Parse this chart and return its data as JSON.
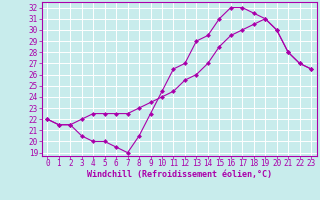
{
  "title": "",
  "xlabel": "Windchill (Refroidissement éolien,°C)",
  "bg_color": "#c8ecec",
  "line_color": "#aa00aa",
  "grid_color": "#ffffff",
  "xlim": [
    -0.5,
    23.5
  ],
  "ylim": [
    18.7,
    32.5
  ],
  "xticks": [
    0,
    1,
    2,
    3,
    4,
    5,
    6,
    7,
    8,
    9,
    10,
    11,
    12,
    13,
    14,
    15,
    16,
    17,
    18,
    19,
    20,
    21,
    22,
    23
  ],
  "yticks": [
    19,
    20,
    21,
    22,
    23,
    24,
    25,
    26,
    27,
    28,
    29,
    30,
    31,
    32
  ],
  "line1_x": [
    0,
    1,
    2,
    3,
    4,
    5,
    6,
    7,
    8,
    9,
    10,
    11,
    12,
    13,
    14,
    15,
    16,
    17,
    18,
    19,
    20,
    21,
    22,
    23
  ],
  "line1_y": [
    22,
    21.5,
    21.5,
    20.5,
    20,
    20,
    19.5,
    19,
    20.5,
    22.5,
    24.5,
    26.5,
    27,
    29,
    29.5,
    31,
    32,
    32,
    31.5,
    31,
    30,
    28,
    27,
    26.5
  ],
  "line2_x": [
    0,
    1,
    2,
    3,
    4,
    5,
    6,
    7,
    8,
    9,
    10,
    11,
    12,
    13,
    14,
    15,
    16,
    17,
    18,
    19,
    20,
    21,
    22,
    23
  ],
  "line2_y": [
    22,
    21.5,
    21.5,
    22,
    22.5,
    22.5,
    22.5,
    22.5,
    23,
    23.5,
    24,
    24.5,
    25.5,
    26,
    27,
    28.5,
    29.5,
    30,
    30.5,
    31,
    30,
    28,
    27,
    26.5
  ],
  "tick_fontsize": 5.5,
  "xlabel_fontsize": 6.0,
  "marker_size": 2.5,
  "line_width": 0.8
}
